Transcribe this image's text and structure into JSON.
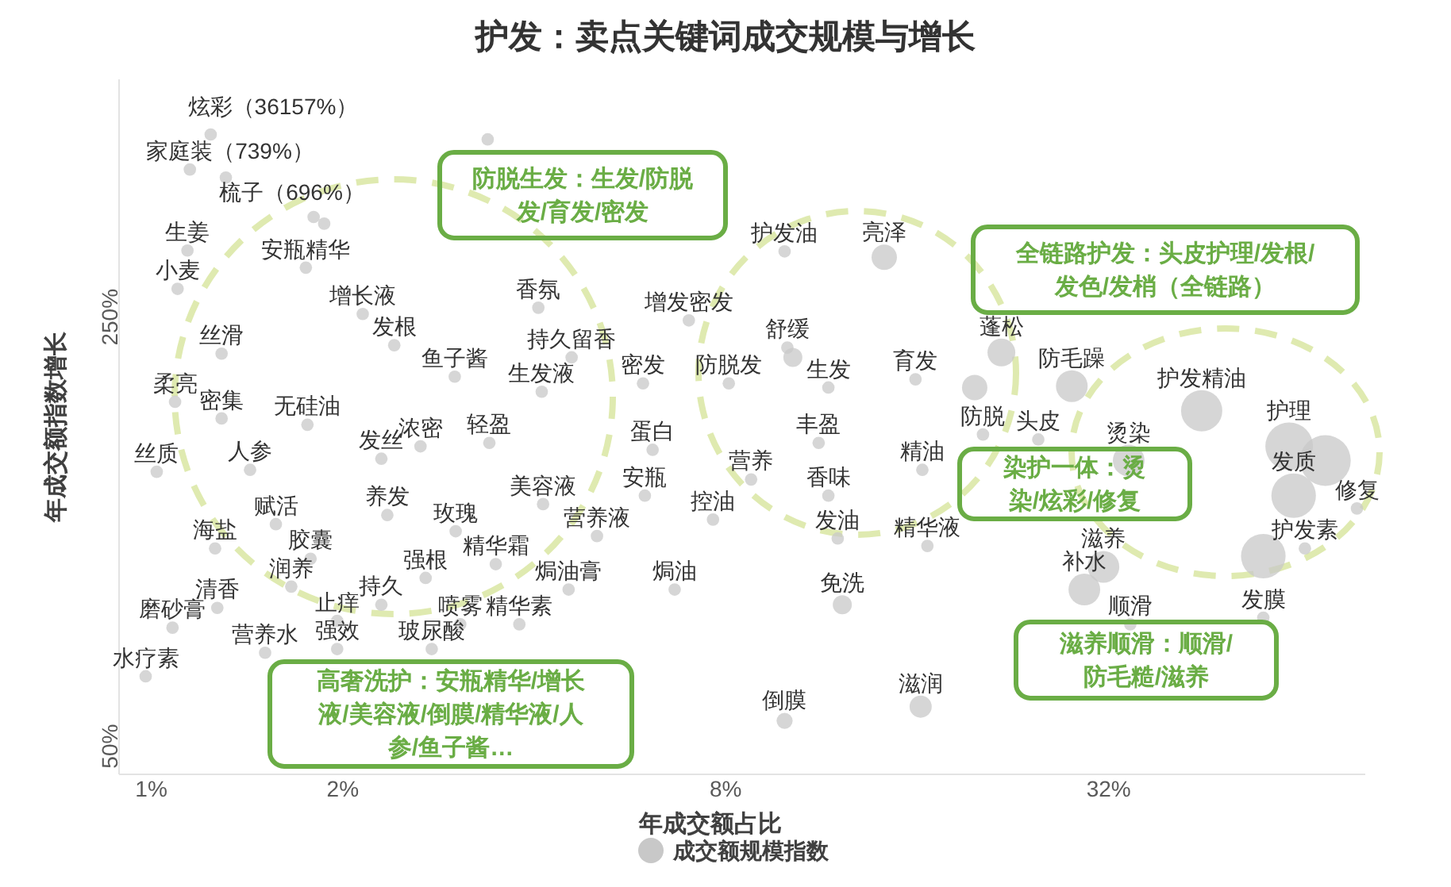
{
  "chart_data": {
    "type": "bubble",
    "title": "护发：卖点关键词成交规模与增长",
    "xlabel": "年成交额占比",
    "ylabel": "年成交额指数增长",
    "annotations": [
      "炫彩（36157%）",
      "家庭装（739%）",
      "梳子（696%）",
      "防脱生发：生发/防脱发/育发/密发",
      "全链路护发：头皮护理/发根/发色/发梢（全链路）",
      "染护一体：烫染/炫彩/修复",
      "高奢洗护：安瓶精华/增长液/美容液/倒膜/精华液/人参/鱼子酱…",
      "滋养顺滑：顺滑/防毛糙/滋养"
    ],
    "log": "xy",
    "xlim": [
      0.89,
      81
    ],
    "ylim": [
      45,
      610
    ],
    "xticks": [
      {
        "value": 1,
        "label": "1%"
      },
      {
        "value": 2,
        "label": "2%"
      },
      {
        "value": 8,
        "label": "8%"
      },
      {
        "value": 32,
        "label": "32%"
      }
    ],
    "yticks": [
      {
        "value": 50,
        "label": "50%"
      },
      {
        "value": 250,
        "label": "250%"
      }
    ],
    "legend": "bottom",
    "marker": "circle",
    "series": [
      {
        "name": "成交额规模指数",
        "color": "#c8c8c8",
        "x": [
          9.9,
          14.2,
          2.15,
          4.06,
          7.0,
          10,
          21.7,
          2.41,
          1.29,
          4.58,
          1.14,
          1.1,
          1.75,
          3.0,
          4.11,
          5.93,
          8.09,
          11.6,
          15.9,
          28.0,
          44.8,
          1.09,
          1.29,
          1.76,
          2.65,
          3.4,
          2.3,
          6.14,
          11.2,
          20.3,
          24.8,
          34.4,
          61.5,
          1.02,
          1.43,
          8.77,
          11.6,
          16.3,
          5.97,
          62.5,
          78.6,
          4.13,
          2.35,
          1.57,
          3.01,
          7.64,
          5.02,
          1.26,
          1.78,
          12.0,
          16.6,
          65.1,
          3.48,
          2.7,
          31.4,
          1.66,
          4.53,
          6.65,
          29.3,
          34.6,
          56.0,
          1.27,
          1.96,
          2.3,
          3.06,
          3.79,
          1.08,
          1.51,
          1.96,
          2.76,
          0.98,
          12.2,
          9.9,
          16.2,
          3.38,
          1.24,
          1.15,
          1.31,
          1.8,
          1.87,
          10.2,
          19.7,
          70.1,
          56.0
        ],
        "values": [
          320,
          313,
          253,
          259,
          247,
          223,
          219,
          225,
          218,
          215,
          321,
          278,
          301,
          200,
          189,
          195,
          195,
          192,
          198,
          193,
          176,
          182,
          171,
          167,
          154,
          156,
          147,
          152,
          156,
          161,
          158,
          146,
          154,
          140,
          141,
          136,
          128,
          141,
          128,
          128,
          122,
          124,
          119,
          115,
          112,
          117,
          110,
          105,
          101,
          109,
          106,
          105,
          99,
          94,
          98,
          91,
          90,
          90,
          90,
          79,
          81,
          84,
          80,
          85,
          79,
          79,
          78,
          71,
          72,
          72,
          65,
          85,
          55,
          58,
          487,
          496,
          435,
          422,
          364,
          355,
          215,
          192,
          146,
          102
        ],
        "sizes": [
          0.06,
          0.25,
          0.06,
          0.06,
          0.06,
          0.06,
          0.3,
          0.06,
          0.06,
          0.06,
          0.06,
          0.06,
          0.06,
          0.06,
          0.06,
          0.06,
          0.06,
          0.06,
          0.06,
          0.39,
          0.66,
          0.06,
          0.06,
          0.06,
          0.06,
          0.06,
          0.06,
          0.06,
          0.06,
          0.06,
          0.06,
          0.39,
          0.88,
          0.06,
          0.06,
          0.06,
          0.06,
          0.06,
          0.06,
          0.77,
          0.06,
          0.06,
          0.06,
          0.06,
          0.06,
          0.06,
          0.06,
          0.06,
          0.06,
          0.06,
          0.06,
          0.06,
          0.06,
          0.06,
          0.39,
          0.06,
          0.06,
          0.06,
          0.39,
          0.06,
          0.06,
          0.06,
          0.06,
          0.06,
          0.06,
          0.06,
          0.06,
          0.06,
          0.06,
          0.06,
          0.06,
          0.14,
          0.1,
          0.19,
          0.06,
          0.06,
          0.06,
          0.06,
          0.06,
          0.06,
          0.14,
          0.25,
          1,
          0.77
        ],
        "value_labels": [
          "护发油",
          "亮泽",
          "增长液",
          "香氛",
          "增发密发",
          "舒缓",
          "蓬松",
          "发根",
          "丝滑",
          "持久留香",
          "生姜",
          "小麦",
          "安瓶精华",
          "鱼子酱",
          "生发液",
          "密发",
          "防脱发",
          "生发",
          "育发",
          "防毛躁",
          "护发精油",
          "柔亮",
          "密集",
          "无硅油",
          "浓密",
          "轻盈",
          "发丝",
          "蛋白",
          "丰盈",
          "防脱",
          "头皮",
          "烫染",
          "护理",
          "丝质",
          "人参",
          "营养",
          "香味",
          "精油",
          "安瓶",
          "发质",
          "修复",
          "美容液",
          "养发",
          "赋活",
          "玫瑰",
          "控油",
          "营养液",
          "海盐",
          "胶囊",
          "发油",
          "精华液",
          "护发素",
          "精华霜",
          "强根",
          "滋养",
          "润养",
          "焗油膏",
          "焗油",
          "补水",
          "顺滑",
          "发膜",
          "清香",
          "止痒",
          "持久",
          "喷雾",
          "精华素",
          "磨砂膏",
          "营养水",
          "强效",
          "玻尿酸",
          "水疗素",
          "免洗",
          "倒膜",
          "滋润",
          null,
          null,
          null,
          null,
          null,
          null,
          null,
          null,
          null,
          null
        ]
      }
    ]
  }
}
